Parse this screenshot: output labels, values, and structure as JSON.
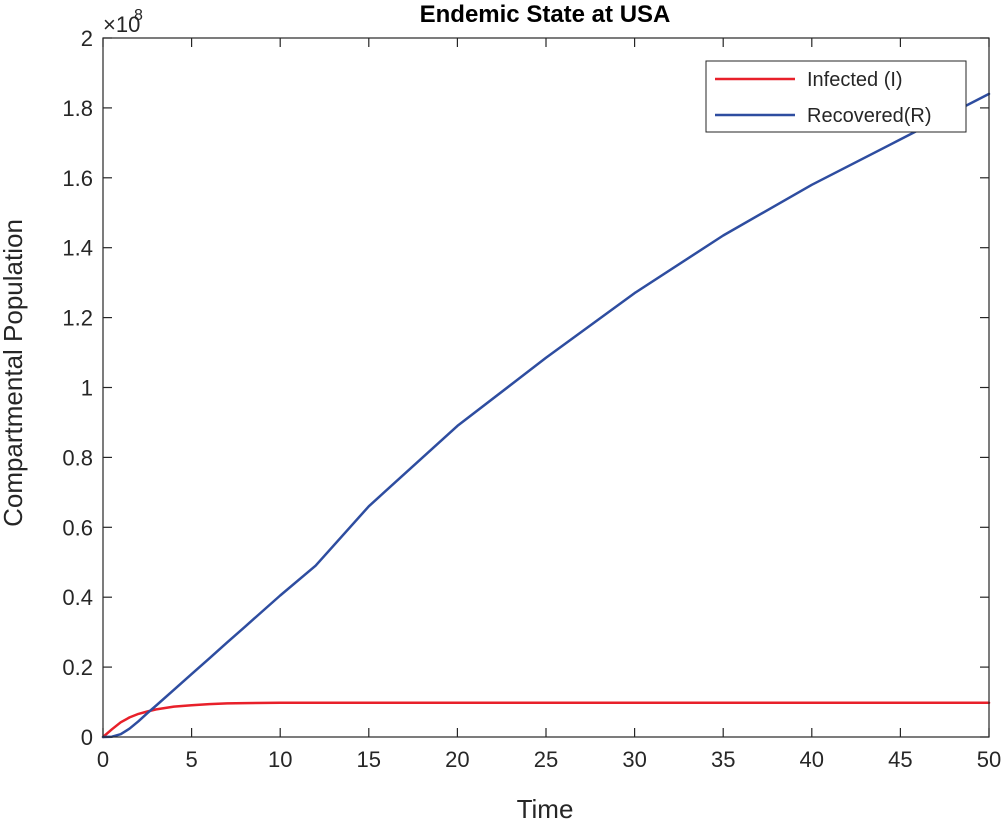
{
  "chart_data": {
    "type": "line",
    "title": "Endemic State at USA",
    "xlabel": "Time",
    "ylabel": "Compartmental Population",
    "y_exponent_base": "×10",
    "y_exponent_power": "8",
    "xlim": [
      0,
      50
    ],
    "ylim": [
      0,
      2
    ],
    "y_scale_factor": 100000000,
    "xticks": [
      0,
      5,
      10,
      15,
      20,
      25,
      30,
      35,
      40,
      45,
      50
    ],
    "xtick_labels": [
      "0",
      "5",
      "10",
      "15",
      "20",
      "25",
      "30",
      "35",
      "40",
      "45",
      "50"
    ],
    "yticks": [
      0,
      0.2,
      0.4,
      0.6,
      0.8,
      1,
      1.2,
      1.4,
      1.6,
      1.8,
      2
    ],
    "ytick_labels": [
      "0",
      "0.2",
      "0.4",
      "0.6",
      "0.8",
      "1",
      "1.2",
      "1.4",
      "1.6",
      "1.8",
      "2"
    ],
    "grid": false,
    "legend_position": "top-right",
    "x": [
      0,
      0.5,
      1,
      1.5,
      2,
      2.5,
      3,
      4,
      5,
      6,
      7,
      8,
      10,
      12,
      15,
      20,
      25,
      30,
      35,
      40,
      45,
      50
    ],
    "series": [
      {
        "name": "Infected (I)",
        "color": "#e8202a",
        "values": [
          0,
          0.022,
          0.042,
          0.056,
          0.066,
          0.073,
          0.079,
          0.087,
          0.091,
          0.094,
          0.096,
          0.097,
          0.098,
          0.098,
          0.098,
          0.098,
          0.098,
          0.098,
          0.098,
          0.098,
          0.098,
          0.098
        ]
      },
      {
        "name": "Recovered(R)",
        "color": "#2e4da0",
        "values": [
          0,
          0.001,
          0.008,
          0.024,
          0.045,
          0.068,
          0.09,
          0.135,
          0.18,
          0.225,
          0.27,
          0.315,
          0.405,
          0.49,
          0.66,
          0.89,
          1.085,
          1.27,
          1.435,
          1.58,
          1.71,
          1.84
        ]
      }
    ]
  }
}
